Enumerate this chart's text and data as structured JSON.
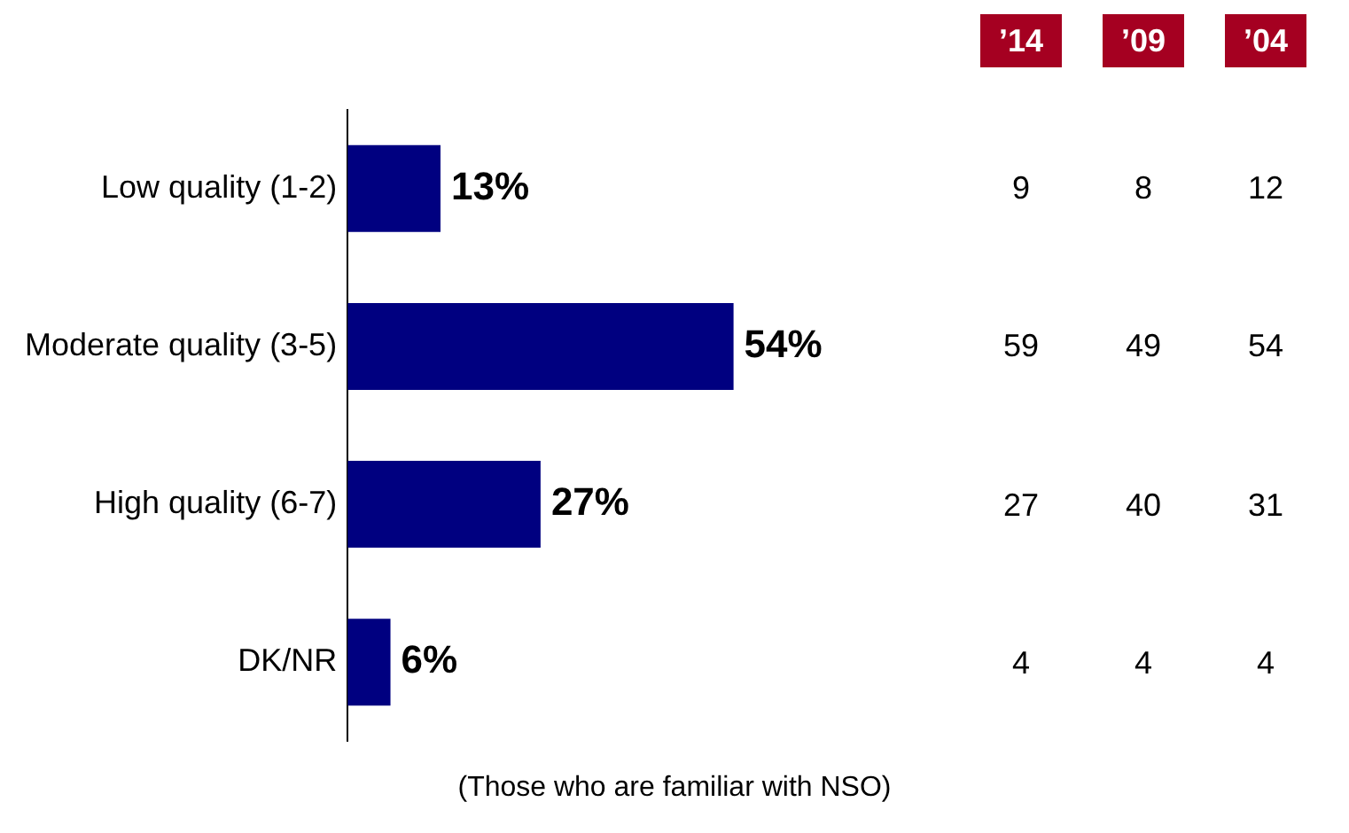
{
  "chart_data": [
    {
      "type": "bar",
      "orientation": "horizontal",
      "categories": [
        "Low quality (1-2)",
        "Moderate quality (3-5)",
        "High quality (6-7)",
        "DK/NR"
      ],
      "values": [
        13,
        54,
        27,
        6
      ],
      "color": "#000080",
      "value_labels": [
        "13%",
        "54%",
        "27%",
        "6%"
      ],
      "legend": false,
      "annotations": [
        "(Those who are familiar with NSO)"
      ]
    },
    {
      "type": "other",
      "annotations": [
        "’14",
        "’09",
        "’04",
        "9",
        "8",
        "12",
        "59",
        "49",
        "54",
        "27",
        "40",
        "31",
        "4",
        "4",
        "4"
      ]
    }
  ]
}
